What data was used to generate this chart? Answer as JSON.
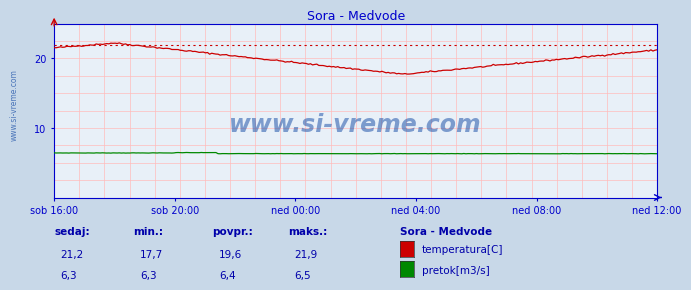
{
  "title": "Sora - Medvode",
  "fig_bg_color": "#c8d8e8",
  "plot_bg_color": "#e8f0f8",
  "temp_color": "#cc0000",
  "flow_color": "#008800",
  "max_line_color": "#cc0000",
  "grid_color": "#ffbbbb",
  "axis_color": "#0000cc",
  "text_color": "#0000aa",
  "title_color": "#0000cc",
  "watermark_color": "#2255aa",
  "ylim": [
    0,
    25
  ],
  "yticks": [
    10,
    20
  ],
  "xlabel_times": [
    "sob 16:00",
    "sob 20:00",
    "ned 00:00",
    "ned 04:00",
    "ned 08:00",
    "ned 12:00"
  ],
  "temp_max": 21.9,
  "temp_min": 17.7,
  "flow_min": 6.3,
  "flow_max": 6.5,
  "legend_title": "Sora - Medvode",
  "legend_items": [
    {
      "label": "temperatura[C]",
      "color": "#cc0000"
    },
    {
      "label": "pretok[m3/s]",
      "color": "#008800"
    }
  ],
  "stats_labels": [
    "sedaj:",
    "min.:",
    "povpr.:",
    "maks.:"
  ],
  "stats_temp": [
    "21,2",
    "17,7",
    "19,6",
    "21,9"
  ],
  "stats_flow": [
    "6,3",
    "6,3",
    "6,4",
    "6,5"
  ],
  "watermark": "www.si-vreme.com",
  "left_label": "www.si-vreme.com",
  "n_points": 288
}
